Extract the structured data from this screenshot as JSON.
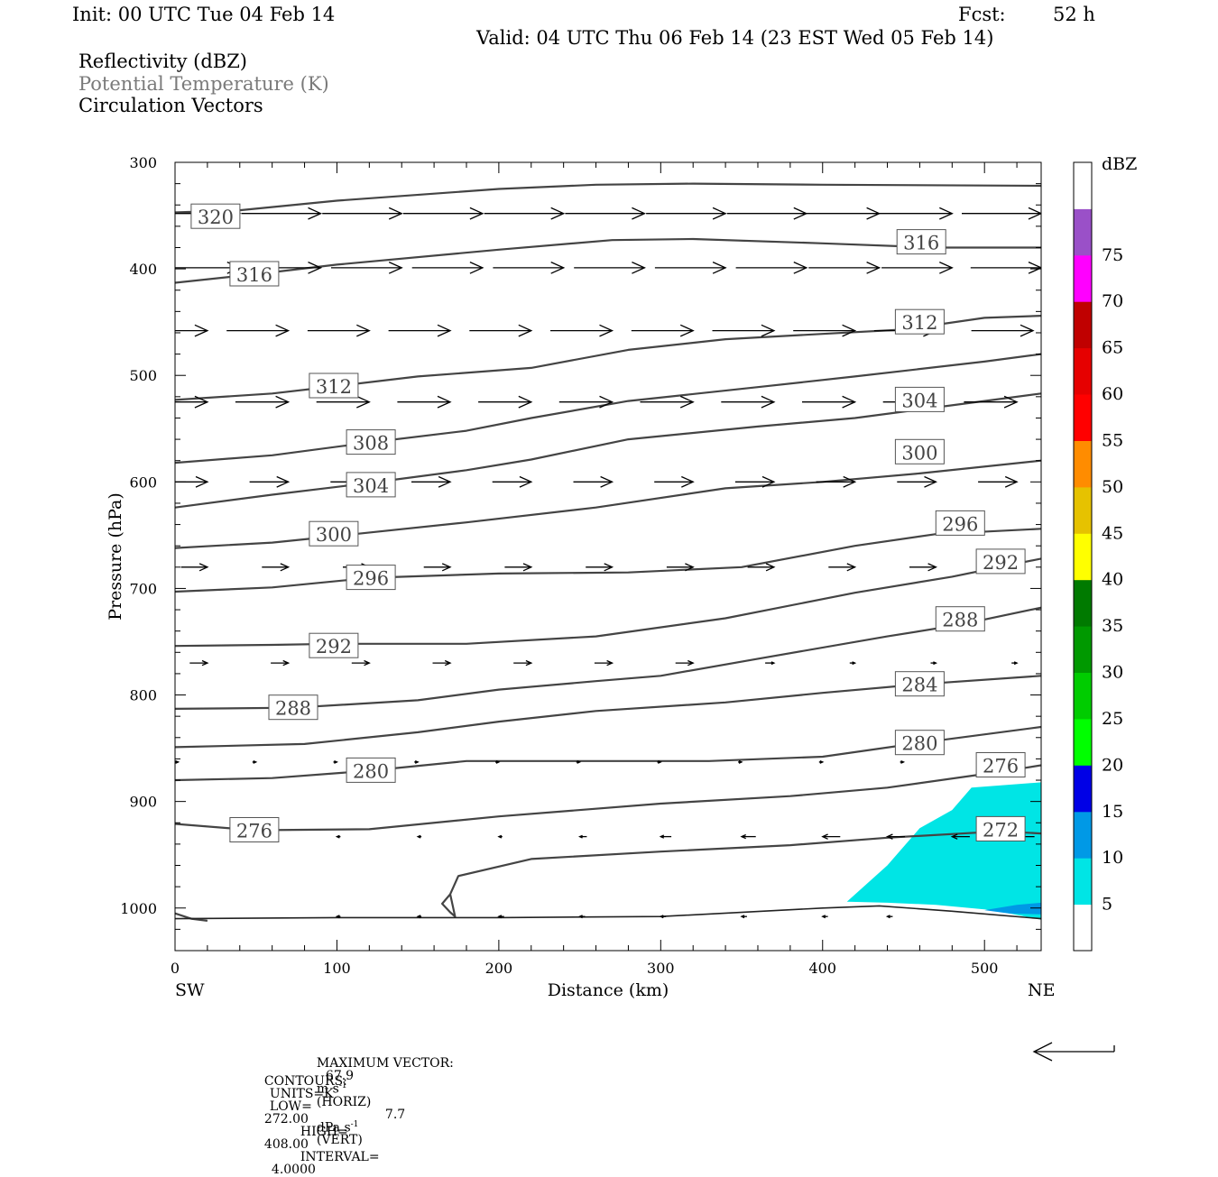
{
  "header": {
    "init": "Init: 00 UTC Tue 04 Feb 14",
    "fcst_label": "Fcst:",
    "fcst_value": "52 h",
    "valid": "Valid: 04 UTC Thu 06 Feb 14 (23 EST Wed 05 Feb 14)",
    "fields": [
      "Reflectivity (dBZ)",
      "Potential Temperature (K)",
      "Circulation Vectors"
    ]
  },
  "footer": {
    "max_vector_label": "MAXIMUM VECTOR:",
    "max_horiz_value": "67.9",
    "max_horiz_units": "m s",
    "max_horiz_exp": "-1",
    "max_horiz_tag": "(HORIZ)",
    "max_vert_value": "7.7",
    "max_vert_units": "dPa s",
    "max_vert_exp": "-1",
    "max_vert_tag": "(VERT)",
    "contours_label": "CONTOURS:",
    "units": "UNITS=K",
    "low_label": "LOW=",
    "low": "272.00",
    "high_label": "HIGH=",
    "high": "408.00",
    "interval_label": "INTERVAL=",
    "interval": "4.0000"
  },
  "chart_data": {
    "type": "cross-section",
    "xlabel": "Distance (km)",
    "ylabel": "Pressure (hPa)",
    "x_left_label": "SW",
    "x_right_label": "NE",
    "xlim": [
      0,
      535
    ],
    "ylim": [
      1040,
      300
    ],
    "xticks": [
      0,
      100,
      200,
      300,
      400,
      500
    ],
    "yticks": [
      300,
      400,
      500,
      600,
      700,
      800,
      900,
      1000
    ],
    "colorbar": {
      "title": "dBZ",
      "ticks": [
        5,
        10,
        15,
        20,
        25,
        30,
        35,
        40,
        45,
        50,
        55,
        60,
        65,
        70,
        75
      ],
      "colors": [
        "#ffffff",
        "#00e5e5",
        "#0099e6",
        "#0000e6",
        "#00ff00",
        "#00cc00",
        "#009900",
        "#007a00",
        "#ffff00",
        "#e6c200",
        "#ff8c00",
        "#ff0000",
        "#e60000",
        "#c00000",
        "#ff00ff",
        "#9a50c8",
        "#ffffff"
      ]
    },
    "theta_contours": [
      {
        "value": 320,
        "label": "320",
        "label_at": [
          25,
          351
        ],
        "points": [
          [
            0,
            347
          ],
          [
            40,
            345
          ],
          [
            100,
            336
          ],
          [
            200,
            325
          ],
          [
            260,
            321
          ],
          [
            320,
            320
          ],
          [
            400,
            321
          ],
          [
            535,
            322
          ]
        ]
      },
      {
        "value": 316,
        "label": "316",
        "label_at": [
          49,
          405
        ],
        "points": [
          [
            0,
            413
          ],
          [
            50,
            405
          ],
          [
            100,
            396
          ],
          [
            200,
            382
          ],
          [
            270,
            373
          ],
          [
            320,
            372
          ],
          [
            400,
            376
          ],
          [
            470,
            380
          ],
          [
            535,
            380
          ]
        ]
      },
      {
        "value": 316,
        "label": "316",
        "label_at": [
          461,
          375
        ],
        "points": []
      },
      {
        "value": 312,
        "label": "312",
        "label_at": [
          98,
          510
        ],
        "points": [
          [
            0,
            523
          ],
          [
            60,
            517
          ],
          [
            100,
            510
          ],
          [
            150,
            501
          ],
          [
            220,
            493
          ],
          [
            280,
            476
          ],
          [
            340,
            466
          ],
          [
            400,
            461
          ],
          [
            450,
            457
          ],
          [
            500,
            446
          ],
          [
            535,
            444
          ]
        ]
      },
      {
        "value": 312,
        "label": "312",
        "label_at": [
          460,
          450
        ],
        "points": []
      },
      {
        "value": 308,
        "label": "308",
        "label_at": [
          121,
          563
        ],
        "points": [
          [
            0,
            582
          ],
          [
            60,
            575
          ],
          [
            120,
            563
          ],
          [
            180,
            552
          ],
          [
            220,
            540
          ],
          [
            280,
            524
          ],
          [
            360,
            511
          ],
          [
            420,
            501
          ],
          [
            500,
            487
          ],
          [
            535,
            480
          ]
        ]
      },
      {
        "value": 304,
        "label": "304",
        "label_at": [
          460,
          523
        ],
        "points": [
          [
            0,
            624
          ],
          [
            60,
            612
          ],
          [
            120,
            601
          ],
          [
            180,
            589
          ],
          [
            220,
            579
          ],
          [
            280,
            560
          ],
          [
            360,
            548
          ],
          [
            420,
            540
          ],
          [
            500,
            524
          ],
          [
            535,
            517
          ]
        ]
      },
      {
        "value": 304,
        "label": "304",
        "label_at": [
          121,
          603
        ],
        "points": []
      },
      {
        "value": 300,
        "label": "300",
        "label_at": [
          98,
          649
        ],
        "points": [
          [
            0,
            662
          ],
          [
            60,
            657
          ],
          [
            98,
            651
          ],
          [
            180,
            638
          ],
          [
            260,
            624
          ],
          [
            340,
            606
          ],
          [
            400,
            600
          ],
          [
            460,
            592
          ],
          [
            535,
            580
          ]
        ]
      },
      {
        "value": 300,
        "label": "300",
        "label_at": [
          460,
          572
        ],
        "points": []
      },
      {
        "value": 296,
        "label": "296",
        "label_at": [
          121,
          690
        ],
        "points": [
          [
            0,
            703
          ],
          [
            60,
            699
          ],
          [
            121,
            690
          ],
          [
            200,
            686
          ],
          [
            280,
            685
          ],
          [
            350,
            680
          ],
          [
            420,
            660
          ],
          [
            470,
            649
          ],
          [
            535,
            644
          ]
        ]
      },
      {
        "value": 296,
        "label": "296",
        "label_at": [
          485,
          639
        ],
        "points": []
      },
      {
        "value": 292,
        "label": "292",
        "label_at": [
          98,
          754
        ],
        "points": [
          [
            0,
            754
          ],
          [
            60,
            753
          ],
          [
            98,
            752
          ],
          [
            180,
            752
          ],
          [
            260,
            745
          ],
          [
            340,
            728
          ],
          [
            420,
            704
          ],
          [
            480,
            689
          ],
          [
            535,
            672
          ]
        ]
      },
      {
        "value": 292,
        "label": "292",
        "label_at": [
          510,
          675
        ],
        "points": []
      },
      {
        "value": 288,
        "label": "288",
        "label_at": [
          73,
          812
        ],
        "points": [
          [
            0,
            813
          ],
          [
            73,
            812
          ],
          [
            150,
            805
          ],
          [
            200,
            795
          ],
          [
            260,
            787
          ],
          [
            300,
            782
          ],
          [
            360,
            766
          ],
          [
            440,
            745
          ],
          [
            485,
            734
          ],
          [
            535,
            718
          ]
        ]
      },
      {
        "value": 288,
        "label": "288",
        "label_at": [
          485,
          729
        ],
        "points": []
      },
      {
        "value": 284,
        "label": "284",
        "label_at": [
          460,
          790
        ],
        "points": [
          [
            0,
            849
          ],
          [
            80,
            846
          ],
          [
            150,
            835
          ],
          [
            200,
            825
          ],
          [
            260,
            815
          ],
          [
            340,
            807
          ],
          [
            400,
            798
          ],
          [
            460,
            790
          ],
          [
            535,
            782
          ]
        ]
      },
      {
        "value": 280,
        "label": "280",
        "label_at": [
          121,
          871
        ],
        "points": [
          [
            0,
            880
          ],
          [
            60,
            878
          ],
          [
            121,
            871
          ],
          [
            180,
            862
          ],
          [
            250,
            862
          ],
          [
            330,
            862
          ],
          [
            400,
            858
          ],
          [
            460,
            845
          ],
          [
            535,
            830
          ]
        ]
      },
      {
        "value": 280,
        "label": "280",
        "label_at": [
          460,
          845
        ],
        "points": []
      },
      {
        "value": 276,
        "label": "276",
        "label_at": [
          49,
          927
        ],
        "points": [
          [
            0,
            921
          ],
          [
            49,
            927
          ],
          [
            120,
            926
          ],
          [
            200,
            914
          ],
          [
            300,
            902
          ],
          [
            380,
            895
          ],
          [
            440,
            887
          ],
          [
            510,
            872
          ],
          [
            535,
            866
          ]
        ]
      },
      {
        "value": 276,
        "label": "276",
        "label_at": [
          510,
          866
        ],
        "points": []
      },
      {
        "value": 272,
        "label": "272",
        "label_at": [
          510,
          926
        ],
        "points": [
          [
            170,
            987
          ],
          [
            165,
            996
          ],
          [
            170,
            1004
          ],
          [
            173,
            1008
          ],
          [
            170,
            987
          ],
          [
            175,
            970
          ],
          [
            220,
            954
          ],
          [
            300,
            947
          ],
          [
            380,
            941
          ],
          [
            440,
            934
          ],
          [
            510,
            928
          ],
          [
            535,
            930
          ]
        ]
      },
      {
        "value": 272,
        "label": "",
        "label_at": null,
        "points": [
          [
            0,
            1005
          ],
          [
            10,
            1010
          ],
          [
            20,
            1012
          ]
        ]
      }
    ],
    "ground_line": [
      [
        0,
        1010
      ],
      [
        100,
        1009
      ],
      [
        200,
        1009
      ],
      [
        300,
        1008
      ],
      [
        400,
        1000
      ],
      [
        435,
        998
      ],
      [
        480,
        1003
      ],
      [
        535,
        1010
      ]
    ],
    "reflectivity_areas": [
      {
        "dbz": 5,
        "polygon": [
          [
            415,
            994
          ],
          [
            440,
            960
          ],
          [
            460,
            925
          ],
          [
            480,
            908
          ],
          [
            492,
            887
          ],
          [
            535,
            882
          ],
          [
            535,
            1011
          ],
          [
            505,
            1002
          ],
          [
            470,
            997
          ],
          [
            440,
            995
          ]
        ]
      },
      {
        "dbz": 10,
        "polygon": [
          [
            500,
            1002
          ],
          [
            520,
            997
          ],
          [
            535,
            995
          ],
          [
            535,
            1006
          ],
          [
            515,
            1005
          ]
        ]
      }
    ],
    "circulation_vectors": {
      "note": "horizontal-wind-dominated circulation arrows pointing toward NE aloft, weakening downward, reversing near 930 hPa",
      "rows": [
        {
          "p": 348,
          "xs": [
            40,
            90,
            140,
            190,
            240,
            290,
            340,
            390,
            435,
            480,
            535
          ],
          "u": [
            0.45,
            0.45,
            0.45,
            0.45,
            0.45,
            0.45,
            0.45,
            0.45,
            0.45,
            0.45,
            0.45
          ]
        },
        {
          "p": 399,
          "xs": [
            40,
            90,
            140,
            190,
            240,
            290,
            340,
            390,
            435,
            480,
            535
          ],
          "u": [
            0.4,
            0.4,
            0.4,
            0.4,
            0.4,
            0.4,
            0.4,
            0.4,
            0.4,
            0.4,
            0.4
          ]
        },
        {
          "p": 458,
          "xs": [
            20,
            70,
            120,
            170,
            220,
            270,
            320,
            370,
            420,
            470,
            530
          ],
          "u": [
            0.35,
            0.35,
            0.35,
            0.35,
            0.35,
            0.35,
            0.35,
            0.35,
            0.35,
            0.35,
            0.35
          ]
        },
        {
          "p": 525,
          "xs": [
            20,
            70,
            120,
            170,
            220,
            270,
            320,
            370,
            420,
            470,
            520
          ],
          "u": [
            0.3,
            0.3,
            0.3,
            0.3,
            0.3,
            0.3,
            0.3,
            0.3,
            0.3,
            0.3,
            0.3
          ]
        },
        {
          "p": 600,
          "xs": [
            20,
            70,
            120,
            170,
            220,
            270,
            320,
            370,
            420,
            470,
            520
          ],
          "u": [
            0.22,
            0.22,
            0.22,
            0.22,
            0.22,
            0.22,
            0.22,
            0.22,
            0.22,
            0.22,
            0.22
          ]
        },
        {
          "p": 680,
          "xs": [
            20,
            70,
            120,
            170,
            220,
            270,
            320,
            370,
            420,
            470,
            520
          ],
          "u": [
            0.15,
            0.15,
            0.15,
            0.15,
            0.15,
            0.15,
            0.15,
            0.15,
            0.15,
            0.15,
            0.15
          ]
        },
        {
          "p": 770,
          "xs": [
            20,
            70,
            120,
            170,
            220,
            270,
            320,
            370,
            420,
            470,
            520
          ],
          "u": [
            0.1,
            0.1,
            0.1,
            0.1,
            0.1,
            0.1,
            0.1,
            0.05,
            0.03,
            0.03,
            0.03
          ]
        },
        {
          "p": 863,
          "xs": [
            2,
            50,
            100,
            150,
            200,
            250,
            300,
            350,
            400,
            450,
            500
          ],
          "u": [
            0.02,
            0.02,
            0.02,
            0.02,
            0.02,
            0.02,
            0.02,
            0.02,
            0.02,
            0.02,
            0.02
          ]
        },
        {
          "p": 933,
          "xs": [
            100,
            150,
            200,
            250,
            300,
            350,
            400,
            440,
            480,
            520
          ],
          "u": [
            -0.02,
            -0.02,
            -0.02,
            -0.04,
            -0.06,
            -0.08,
            -0.1,
            -0.1,
            -0.1,
            -0.1
          ]
        },
        {
          "p": 1008,
          "xs": [
            100,
            150,
            200,
            250,
            300,
            350,
            400,
            440
          ],
          "u": [
            -0.02,
            -0.02,
            -0.03,
            -0.03,
            -0.03,
            -0.03,
            -0.03,
            -0.03
          ]
        }
      ]
    }
  }
}
